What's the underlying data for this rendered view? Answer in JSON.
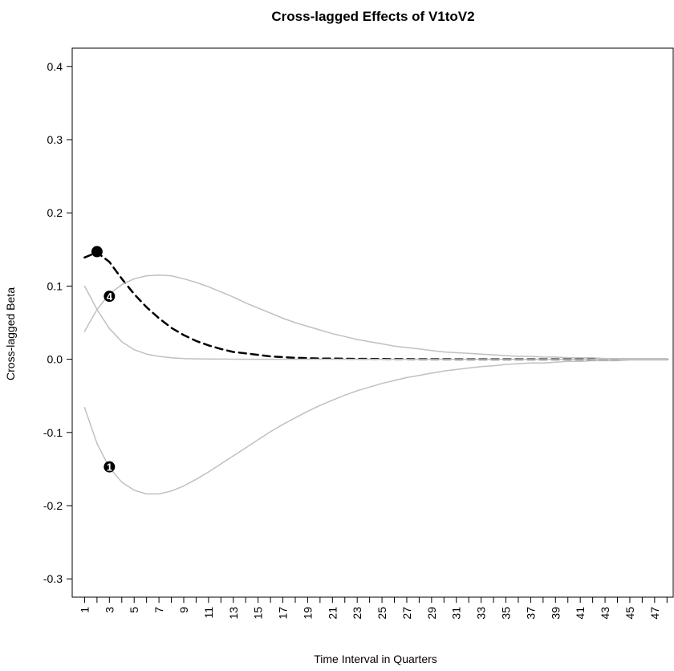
{
  "chart_data": {
    "type": "line",
    "title": "Cross-lagged Effects of V1toV2",
    "xlabel": "Time Interval in Quarters",
    "ylabel": "Cross-lagged Beta",
    "xlim": [
      0,
      48.5
    ],
    "ylim": [
      -0.325,
      0.425
    ],
    "x_ticks": [
      1,
      2,
      3,
      4,
      5,
      6,
      7,
      8,
      9,
      10,
      11,
      12,
      13,
      14,
      15,
      16,
      17,
      18,
      19,
      20,
      21,
      22,
      23,
      24,
      25,
      26,
      27,
      28,
      29,
      30,
      31,
      32,
      33,
      34,
      35,
      36,
      37,
      38,
      39,
      40,
      41,
      42,
      43,
      44,
      45,
      46,
      47,
      48
    ],
    "x_tick_labels": [
      "1",
      "",
      "3",
      "",
      "5",
      "",
      "7",
      "",
      "9",
      "",
      "11",
      "",
      "13",
      "",
      "15",
      "",
      "17",
      "",
      "19",
      "",
      "21",
      "",
      "23",
      "",
      "25",
      "",
      "27",
      "",
      "29",
      "",
      "31",
      "",
      "33",
      "",
      "35",
      "",
      "37",
      "",
      "39",
      "",
      "41",
      "",
      "43",
      "",
      "45",
      "",
      "47",
      ""
    ],
    "y_ticks": [
      -0.3,
      -0.2,
      -0.1,
      0.0,
      0.1,
      0.2,
      0.3,
      0.4
    ],
    "y_tick_labels": [
      "-0.3",
      "-0.2",
      "-0.1",
      "0.0",
      "0.1",
      "0.2",
      "0.3",
      "0.4"
    ],
    "grid": false,
    "x": [
      1,
      2,
      3,
      4,
      5,
      6,
      7,
      8,
      9,
      10,
      11,
      12,
      13,
      14,
      15,
      16,
      17,
      18,
      19,
      20,
      21,
      22,
      23,
      24,
      25,
      26,
      27,
      28,
      29,
      30,
      31,
      32,
      33,
      34,
      35,
      36,
      37,
      38,
      39,
      40,
      41,
      42,
      43,
      44,
      45,
      46,
      47,
      48
    ],
    "series": [
      {
        "style": "dashed",
        "color": "#000000",
        "values": [
          0.139,
          0.146,
          0.133,
          0.11,
          0.089,
          0.071,
          0.056,
          0.043,
          0.033,
          0.025,
          0.019,
          0.014,
          0.01,
          0.008,
          0.006,
          0.004,
          0.003,
          0.002,
          0.0015,
          0.001,
          0.001,
          0.0007,
          0.0005,
          0.0004,
          0.0003,
          0.0002,
          0.0002,
          0.0001,
          0.0001,
          0.0001,
          0,
          0,
          0,
          0,
          0,
          0,
          0,
          0,
          0,
          0,
          0,
          0,
          0,
          0,
          0,
          0,
          0,
          0
        ]
      },
      {
        "style": "solid",
        "color": "#c0c0c0",
        "values": [
          0.1,
          0.068,
          0.042,
          0.024,
          0.013,
          0.007,
          0.004,
          0.002,
          0.001,
          0.0005,
          0.0003,
          0.0002,
          0.0001,
          0,
          0,
          0,
          0,
          0,
          0,
          0,
          0,
          0,
          0,
          0,
          0,
          0,
          0,
          0,
          0,
          0,
          0,
          0,
          0,
          0,
          0,
          0,
          0,
          0,
          0,
          0,
          0,
          0,
          0,
          0,
          0,
          0,
          0,
          0
        ]
      },
      {
        "style": "solid",
        "color": "#c0c0c0",
        "values": [
          0.038,
          0.068,
          0.089,
          0.102,
          0.11,
          0.114,
          0.115,
          0.114,
          0.11,
          0.105,
          0.099,
          0.092,
          0.085,
          0.077,
          0.07,
          0.063,
          0.056,
          0.05,
          0.045,
          0.04,
          0.035,
          0.031,
          0.027,
          0.024,
          0.021,
          0.018,
          0.016,
          0.014,
          0.012,
          0.01,
          0.009,
          0.008,
          0.007,
          0.006,
          0.005,
          0.004,
          0.004,
          0.003,
          0.003,
          0.002,
          0.002,
          0.002,
          0.001,
          0.001,
          0.001,
          0.001,
          0.001,
          0.001
        ]
      },
      {
        "style": "solid",
        "color": "#c0c0c0",
        "values": [
          -0.066,
          -0.115,
          -0.148,
          -0.168,
          -0.179,
          -0.184,
          -0.184,
          -0.18,
          -0.173,
          -0.164,
          -0.154,
          -0.143,
          -0.132,
          -0.121,
          -0.11,
          -0.099,
          -0.089,
          -0.08,
          -0.071,
          -0.063,
          -0.056,
          -0.049,
          -0.043,
          -0.038,
          -0.033,
          -0.029,
          -0.025,
          -0.022,
          -0.019,
          -0.016,
          -0.014,
          -0.012,
          -0.01,
          -0.009,
          -0.007,
          -0.006,
          -0.005,
          -0.005,
          -0.004,
          -0.003,
          -0.003,
          -0.002,
          -0.002,
          -0.002,
          -0.001,
          -0.001,
          -0.001,
          -0.001
        ]
      }
    ],
    "markers": [
      {
        "x": 2,
        "y": 0.147,
        "label": ""
      },
      {
        "x": 3,
        "y": 0.086,
        "label": "4"
      },
      {
        "x": 3,
        "y": -0.147,
        "label": "1"
      }
    ]
  }
}
